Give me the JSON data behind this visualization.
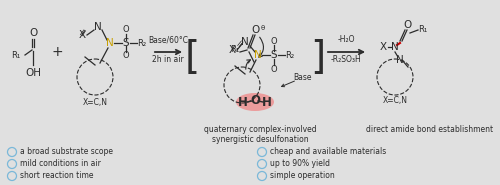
{
  "background_color": "#e0e0e0",
  "bullet_items_left": [
    "a broad substrate scope",
    "mild conditions in air",
    "short reaction time"
  ],
  "bullet_items_right": [
    "cheap and available materials",
    "up to 90% yield",
    "simple operation"
  ],
  "reaction_condition1": "Base/60°C",
  "reaction_condition2": "2h in air",
  "product_condition1": "-H₂O",
  "product_condition2": "-R₂SO₃H",
  "label_intermediate1": "quaternary complex-involved",
  "label_intermediate2": "synergistic desulfonation",
  "label_product": "direct amide bond establishment",
  "circle_color": "#7ab8d9",
  "text_color": "#2c2c2c",
  "red_highlight": "#f08080",
  "bond_red_color": "#cc0000",
  "sulfonyl_yellow": "#c8a000"
}
